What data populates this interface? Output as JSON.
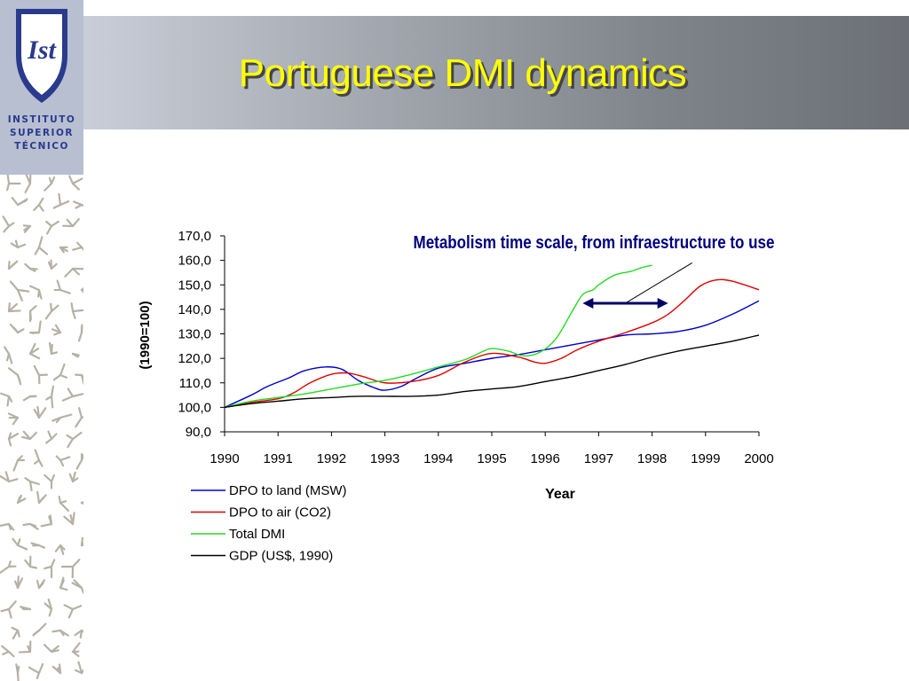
{
  "slide": {
    "title": "Portuguese DMI dynamics",
    "logo_text": "Ist",
    "institute_lines": [
      "INSTITUTO",
      "SUPERIOR",
      "TÉCNICO"
    ]
  },
  "colors": {
    "title": "#ffff00",
    "logo_block": "#b7bfd1",
    "logo_shield": "#2a3a8c",
    "arrow": "#000066",
    "annotation": "#000080"
  },
  "chart_data": {
    "type": "line",
    "annotation": "Metabolism time scale, from infraestructure to use",
    "ylabel": "(1990=100)",
    "xlabel": "Year",
    "ylim": [
      90,
      170
    ],
    "xlim": [
      1990,
      2000
    ],
    "yticks": [
      "90,0",
      "100,0",
      "110,0",
      "120,0",
      "130,0",
      "140,0",
      "150,0",
      "160,0",
      "170,0"
    ],
    "xticks": [
      "1990",
      "1991",
      "1992",
      "1993",
      "1994",
      "1995",
      "1996",
      "1997",
      "1998",
      "1999",
      "2000"
    ],
    "legend_position": "bottom-left",
    "series": [
      {
        "name": "DPO to land (MSW)",
        "color": "#0000cc",
        "x": [
          1990,
          1990.5,
          1990.8,
          1991.2,
          1991.5,
          1991.9,
          1992.2,
          1992.5,
          1992.8,
          1993.0,
          1993.3,
          1993.6,
          1994.0,
          1994.5,
          1995.0,
          1995.5,
          1996.0,
          1996.5,
          1997.0,
          1997.5,
          1998.0,
          1998.5,
          1999.0,
          1999.5,
          2000
        ],
        "y": [
          100,
          105,
          108.5,
          112,
          115,
          116.5,
          115.5,
          111,
          108,
          107,
          108.5,
          112,
          116,
          118,
          120,
          121.5,
          123.5,
          125.5,
          127.5,
          129.5,
          130,
          131,
          133.5,
          138,
          143.5
        ]
      },
      {
        "name": "DPO to air (CO2)",
        "color": "#e00000",
        "x": [
          1990,
          1990.5,
          1991.0,
          1991.3,
          1991.6,
          1992.0,
          1992.3,
          1992.6,
          1993.0,
          1993.5,
          1994.0,
          1994.5,
          1995.0,
          1995.5,
          1995.8,
          1996.0,
          1996.3,
          1996.6,
          1997.0,
          1997.5,
          1998.0,
          1998.3,
          1998.6,
          1998.9,
          1999.2,
          1999.5,
          2000
        ],
        "y": [
          100,
          102,
          103.5,
          106,
          110,
          113.5,
          114,
          112.5,
          110,
          110.5,
          113,
          118.5,
          122,
          120.5,
          118.5,
          118,
          120,
          123.5,
          127,
          130.5,
          134.5,
          138,
          143.5,
          149.5,
          152,
          151.5,
          148
        ]
      },
      {
        "name": "Total DMI",
        "color": "#22dd22",
        "x": [
          1990,
          1990.5,
          1991.0,
          1991.5,
          1992.0,
          1992.5,
          1993.0,
          1993.5,
          1994.0,
          1994.5,
          1994.8,
          1995.0,
          1995.3,
          1995.6,
          1995.9,
          1996.2,
          1996.5,
          1996.7,
          1996.9,
          1997.0,
          1997.3,
          1997.6,
          1997.8,
          1998.0
        ],
        "y": [
          100,
          102.5,
          104,
          105.5,
          107.5,
          109.5,
          111,
          113.5,
          116.5,
          119.5,
          122.5,
          124,
          123,
          121,
          122.5,
          128,
          139,
          146,
          148,
          150,
          154,
          155.5,
          157,
          158
        ]
      },
      {
        "name": "GDP (US$, 1990)",
        "color": "#000000",
        "x": [
          1990,
          1990.5,
          1991.0,
          1991.5,
          1992.0,
          1992.5,
          1993.0,
          1993.5,
          1994.0,
          1994.5,
          1995.0,
          1995.5,
          1996.0,
          1996.5,
          1997.0,
          1997.5,
          1998.0,
          1998.5,
          1999.0,
          1999.5,
          2000
        ],
        "y": [
          100,
          101.5,
          102.5,
          103.5,
          104,
          104.5,
          104.5,
          104.5,
          105,
          106.5,
          107.5,
          108.5,
          110.5,
          112.5,
          115,
          117.5,
          120.5,
          123,
          125,
          127,
          129.5
        ]
      }
    ],
    "arrow": {
      "x_start": 1996.7,
      "x_end": 1998.3,
      "y": 142.5
    },
    "pointer_line": {
      "x_start": 1997.5,
      "y_start": 142.5,
      "x_end": 1998.75,
      "y_end": 159
    }
  }
}
